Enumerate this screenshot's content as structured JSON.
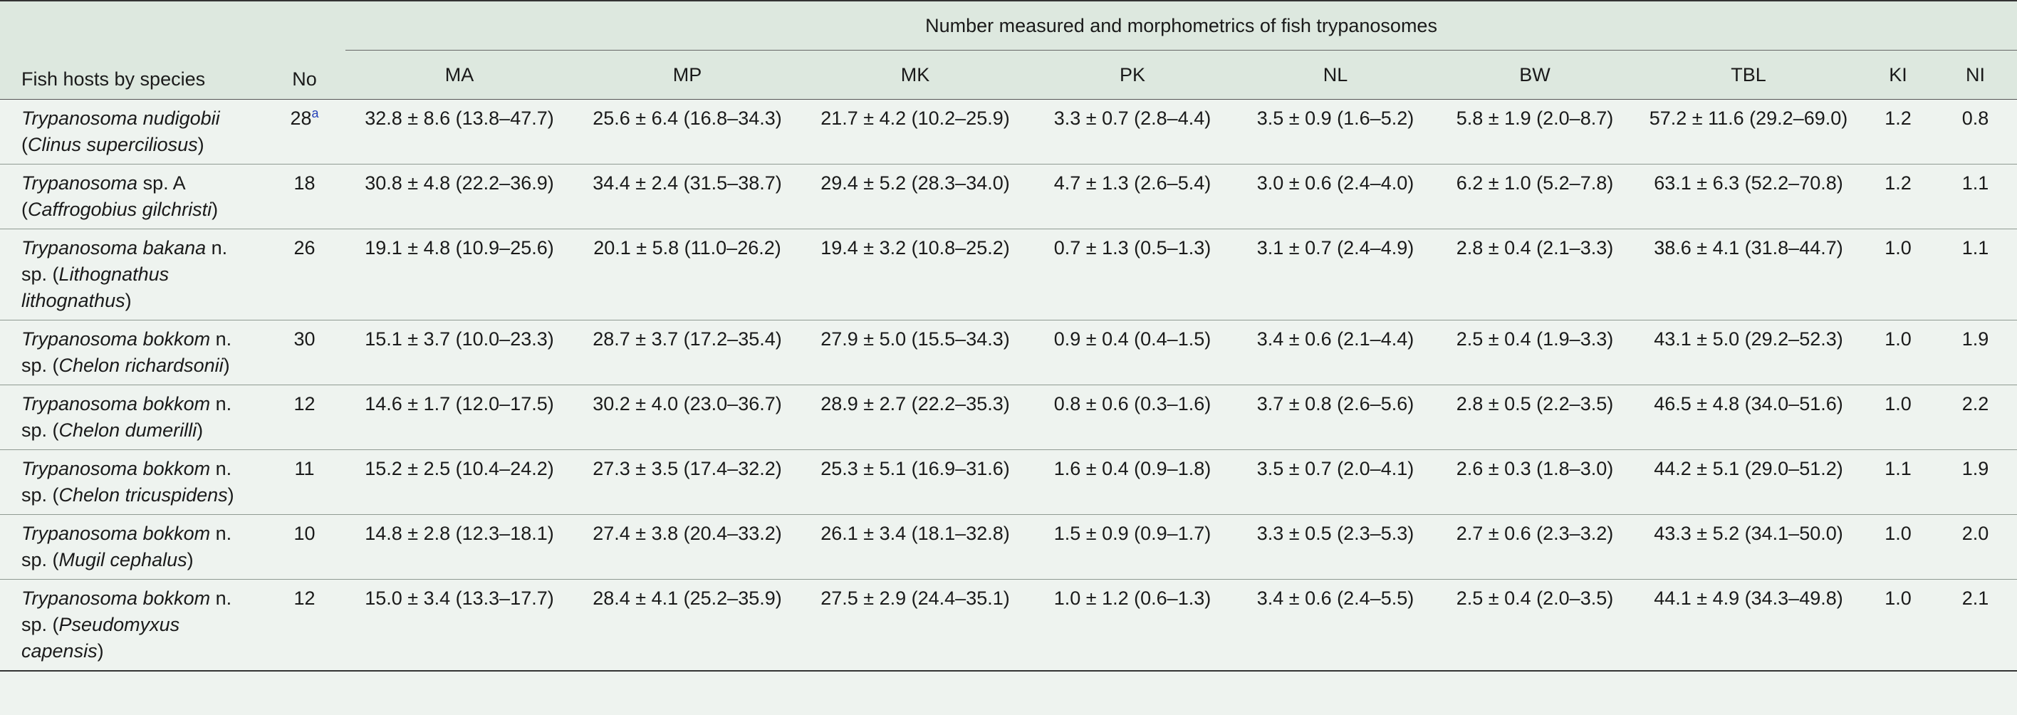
{
  "header": {
    "group_title": "Number measured and morphometrics of fish trypanosomes",
    "host_col": "Fish hosts by species",
    "no_col": "No",
    "columns": [
      "MA",
      "MP",
      "MK",
      "PK",
      "NL",
      "BW",
      "TBL",
      "KI",
      "NI"
    ]
  },
  "rows": [
    {
      "parasite": "Trypanosoma nudigobii",
      "parasite_suffix": "",
      "host_open": "(",
      "host": "Clinus superciliosus",
      "host_close": ")",
      "no": "28",
      "no_footnote": "a",
      "values": [
        "32.8 ± 8.6 (13.8–47.7)",
        "25.6 ± 6.4 (16.8–34.3)",
        "21.7 ± 4.2 (10.2–25.9)",
        "3.3 ± 0.7 (2.8–4.4)",
        "3.5 ± 0.9 (1.6–5.2)",
        "5.8 ± 1.9 (2.0–8.7)",
        "57.2 ± 11.6 (29.2–69.0)",
        "1.2",
        "0.8"
      ]
    },
    {
      "parasite": "Trypanosoma",
      "parasite_suffix": " sp. A",
      "host_open": "(",
      "host": "Caffrogobius gilchristi",
      "host_close": ")",
      "no": "18",
      "no_footnote": "",
      "values": [
        "30.8 ± 4.8 (22.2–36.9)",
        "34.4 ± 2.4 (31.5–38.7)",
        "29.4 ± 5.2 (28.3–34.0)",
        "4.7 ± 1.3 (2.6–5.4)",
        "3.0 ± 0.6 (2.4–4.0)",
        "6.2 ± 1.0 (5.2–7.8)",
        "63.1 ± 6.3 (52.2–70.8)",
        "1.2",
        "1.1"
      ]
    },
    {
      "parasite": "Trypanosoma bakana",
      "parasite_suffix": " n. sp. ",
      "host_open": "(",
      "host": "Lithognathus lithognathus",
      "host_close": ")",
      "no": "26",
      "no_footnote": "",
      "values": [
        "19.1 ± 4.8 (10.9–25.6)",
        "20.1 ± 5.8 (11.0–26.2)",
        "19.4 ± 3.2 (10.8–25.2)",
        "0.7 ± 1.3 (0.5–1.3)",
        "3.1 ± 0.7 (2.4–4.9)",
        "2.8 ± 0.4 (2.1–3.3)",
        "38.6 ± 4.1 (31.8–44.7)",
        "1.0",
        "1.1"
      ]
    },
    {
      "parasite": "Trypanosoma bokkom",
      "parasite_suffix": " n. sp. ",
      "host_open": "(",
      "host": "Chelon richardsonii",
      "host_close": ")",
      "no": "30",
      "no_footnote": "",
      "values": [
        "15.1 ± 3.7 (10.0–23.3)",
        "28.7 ± 3.7 (17.2–35.4)",
        "27.9 ± 5.0 (15.5–34.3)",
        "0.9 ± 0.4 (0.4–1.5)",
        "3.4 ± 0.6 (2.1–4.4)",
        "2.5 ± 0.4 (1.9–3.3)",
        "43.1 ± 5.0 (29.2–52.3)",
        "1.0",
        "1.9"
      ]
    },
    {
      "parasite": "Trypanosoma bokkom",
      "parasite_suffix": " n. sp. ",
      "host_open": "(",
      "host": "Chelon dumerilli",
      "host_close": ")",
      "no": "12",
      "no_footnote": "",
      "values": [
        "14.6 ± 1.7 (12.0–17.5)",
        "30.2 ± 4.0 (23.0–36.7)",
        "28.9 ± 2.7 (22.2–35.3)",
        "0.8 ± 0.6 (0.3–1.6)",
        "3.7 ± 0.8 (2.6–5.6)",
        "2.8 ± 0.5 (2.2–3.5)",
        "46.5 ± 4.8 (34.0–51.6)",
        "1.0",
        "2.2"
      ]
    },
    {
      "parasite": "Trypanosoma bokkom",
      "parasite_suffix": " n. sp. ",
      "host_open": "(",
      "host": "Chelon tricuspidens",
      "host_close": ")",
      "no": "11",
      "no_footnote": "",
      "values": [
        "15.2 ± 2.5 (10.4–24.2)",
        "27.3 ± 3.5 (17.4–32.2)",
        "25.3 ± 5.1 (16.9–31.6)",
        "1.6 ± 0.4 (0.9–1.8)",
        "3.5 ± 0.7 (2.0–4.1)",
        "2.6 ± 0.3 (1.8–3.0)",
        "44.2 ± 5.1 (29.0–51.2)",
        "1.1",
        "1.9"
      ]
    },
    {
      "parasite": "Trypanosoma bokkom",
      "parasite_suffix": " n. sp. ",
      "host_open": "(",
      "host": "Mugil cephalus",
      "host_close": ")",
      "no": "10",
      "no_footnote": "",
      "values": [
        "14.8 ± 2.8 (12.3–18.1)",
        "27.4 ± 3.8 (20.4–33.2)",
        "26.1 ± 3.4 (18.1–32.8)",
        "1.5 ± 0.9 (0.9–1.7)",
        "3.3 ± 0.5 (2.3–5.3)",
        "2.7 ± 0.6 (2.3–3.2)",
        "43.3 ± 5.2 (34.1–50.0)",
        "1.0",
        "2.0"
      ]
    },
    {
      "parasite": "Trypanosoma bokkom",
      "parasite_suffix": " n. sp. ",
      "host_open": "(",
      "host": "Pseudomyxus capensis",
      "host_close": ")",
      "no": "12",
      "no_footnote": "",
      "values": [
        "15.0 ± 3.4 (13.3–17.7)",
        "28.4 ± 4.1 (25.2–35.9)",
        "27.5 ± 2.9 (24.4–35.1)",
        "1.0 ± 1.2 (0.6–1.3)",
        "3.4 ± 0.6 (2.4–5.5)",
        "2.5 ± 0.4 (2.0–3.5)",
        "44.1 ± 4.9 (34.3–49.8)",
        "1.0",
        "2.1"
      ]
    }
  ]
}
